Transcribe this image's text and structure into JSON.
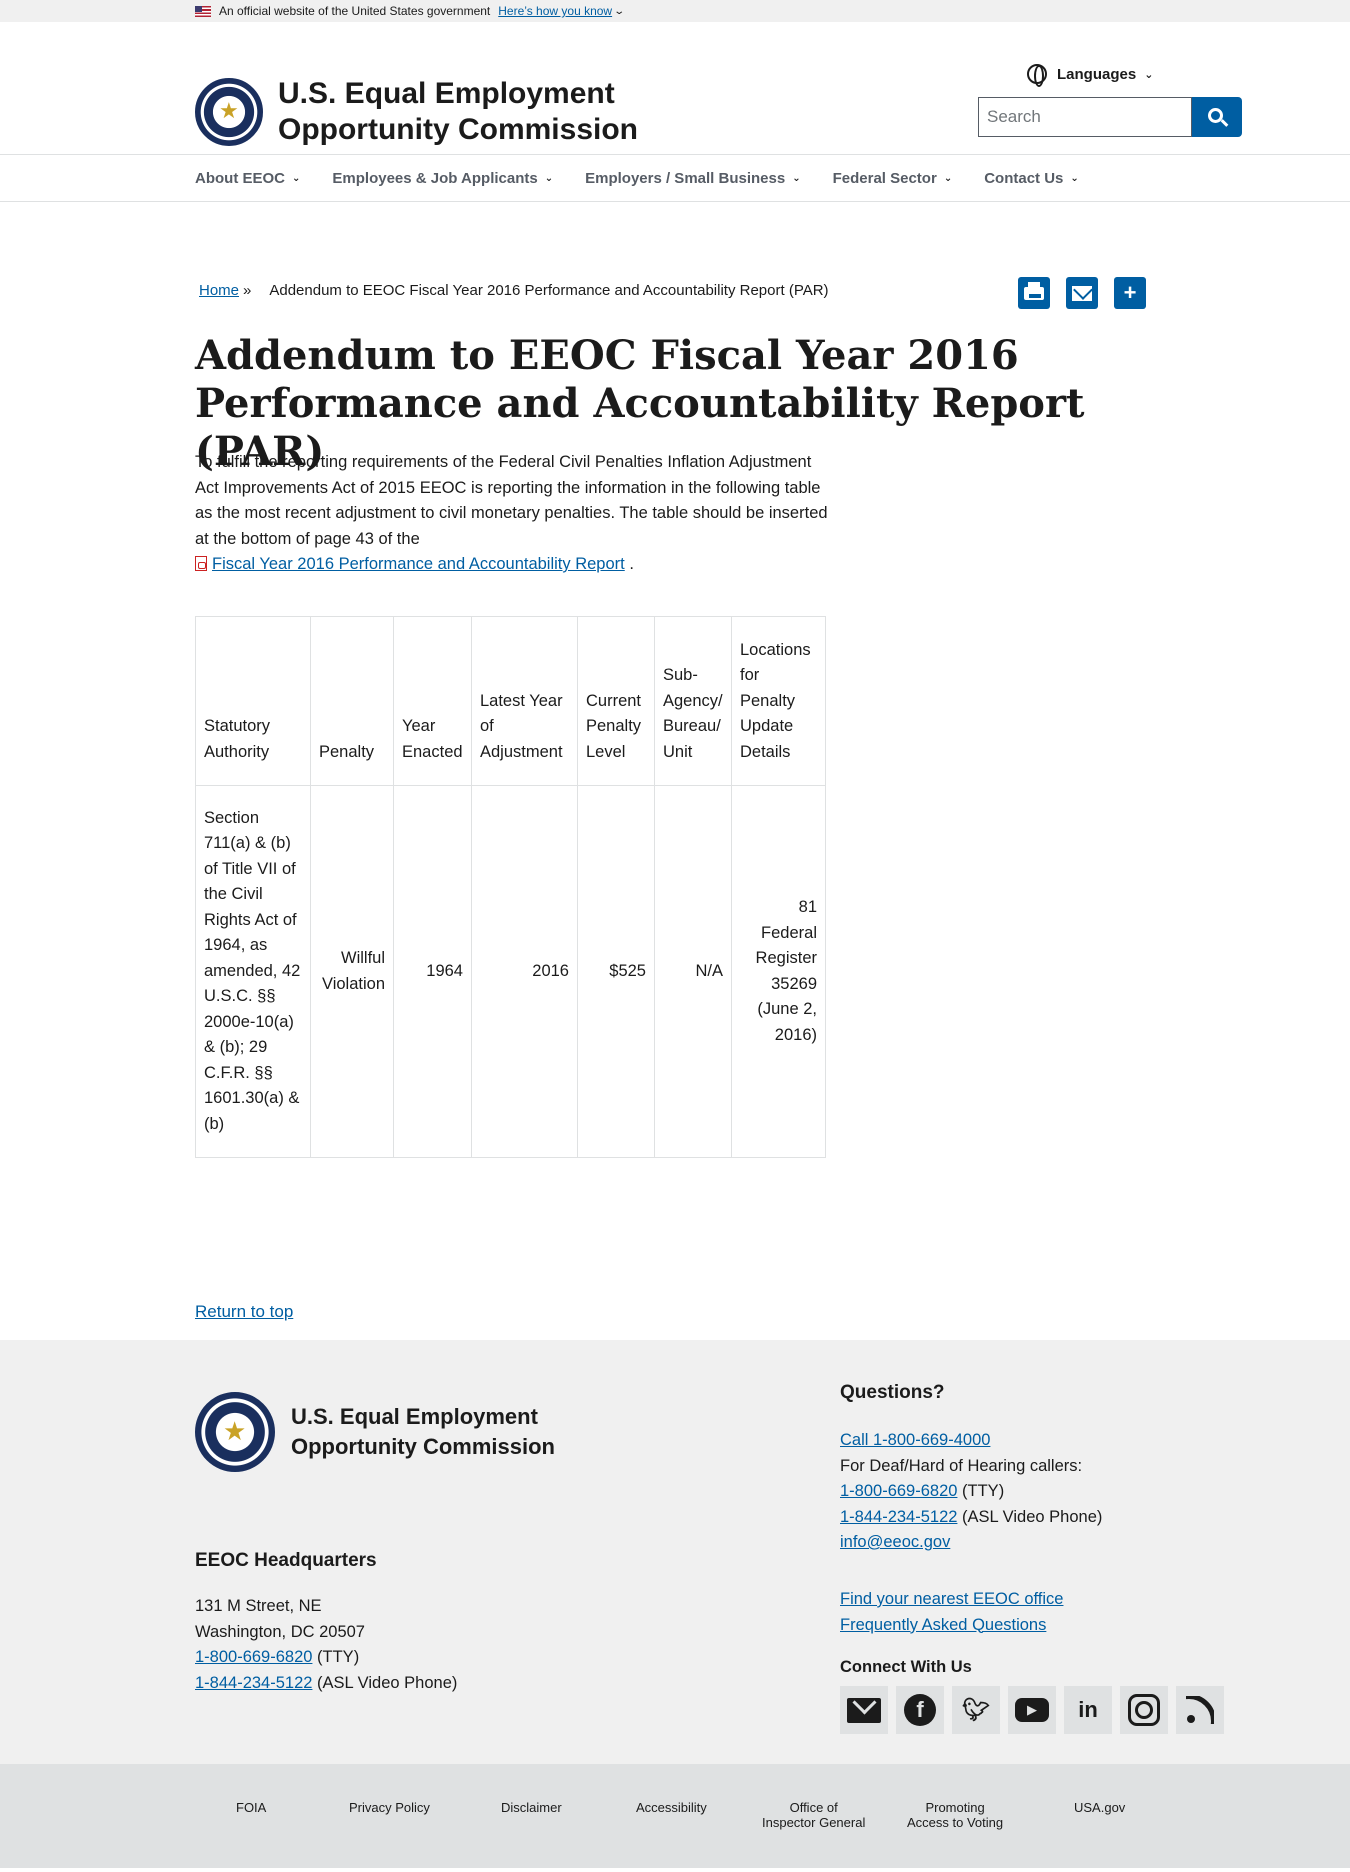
{
  "gov_banner": {
    "text": "An official website of the United States government",
    "how_link": "Here’s how you know"
  },
  "header": {
    "agency_line1": "U.S. Equal Employment",
    "agency_line2": "Opportunity Commission",
    "languages": "Languages",
    "search_placeholder": "Search"
  },
  "nav": [
    "About EEOC",
    "Employees & Job Applicants",
    "Employers / Small Business",
    "Federal Sector",
    "Contact Us"
  ],
  "breadcrumb": {
    "home": "Home",
    "separator": "»",
    "current": "Addendum to EEOC Fiscal Year 2016 Performance and Accountability Report (PAR)"
  },
  "page": {
    "title": "Addendum to EEOC Fiscal Year 2016 Performance and Accountability Report (PAR)",
    "intro": "To fulfill the reporting requirements of the Federal Civil Penalties Inflation Adjustment Act Improvements Act of 2015 EEOC is reporting the information in the following table as the most recent adjustment to civil monetary penalties.  The table should be inserted at the bottom of page 43 of the",
    "report_link": "Fiscal Year 2016 Performance and Accountability Report",
    "period": "."
  },
  "table": {
    "headers": [
      "Statutory Authority",
      "Penalty",
      "Year Enacted",
      "Latest Year of Adjustment",
      "Current Penalty Level",
      "Sub-Agency/ Bureau/ Unit",
      "Locations for Penalty Update Details"
    ],
    "row": {
      "statutory_authority": "Section 711(a) & (b) of Title VII of the Civil Rights Act of 1964, as amended, 42 U.S.C. §§ 2000e-10(a) & (b); 29 C.F.R. §§ 1601.30(a) & (b)",
      "penalty": "Willful Violation",
      "year_enacted": "1964",
      "latest_year": "2016",
      "penalty_level": "$525",
      "sub_agency": "N/A",
      "locations": "81 Federal Register 35269 (June 2, 2016)"
    }
  },
  "return_to_top": "Return to top",
  "footer": {
    "agency_line1": "U.S. Equal Employment",
    "agency_line2": "Opportunity Commission",
    "hq_heading": "EEOC Headquarters",
    "hq_address1": "131 M Street, NE",
    "hq_address2": "Washington, DC 20507",
    "hq_tty": "1-800-669-6820",
    "hq_tty_suffix": "(TTY)",
    "hq_asl": "1-844-234-5122",
    "hq_asl_suffix": "(ASL Video Phone)",
    "questions_heading": "Questions?",
    "call": "Call 1-800-669-4000",
    "deaf_text": "For Deaf/Hard of Hearing callers:",
    "tty": "1-800-669-6820",
    "tty_suffix": "(TTY)",
    "asl": "1-844-234-5122",
    "asl_suffix": "(ASL Video Phone)",
    "email": "info@eeoc.gov",
    "find_office": "Find your nearest EEOC office",
    "faq": "Frequently Asked Questions",
    "connect_heading": "Connect With Us",
    "social_icons": [
      "email-icon",
      "facebook-icon",
      "twitter-icon",
      "youtube-icon",
      "linkedin-icon",
      "instagram-icon",
      "rss-icon"
    ]
  },
  "bottom_links": {
    "foia": "FOIA",
    "privacy": "Privacy Policy",
    "disclaimer": "Disclaimer",
    "accessibility": "Accessibility",
    "oig_line1": "Office of",
    "oig_line2": "Inspector General",
    "voting_line1": "Promoting",
    "voting_line2": "Access to Voting",
    "usagov": "USA.gov"
  },
  "colors": {
    "link": "#005ea2",
    "footer_bg": "#f0f0f0",
    "bottom_bar_bg": "#dfe1e2"
  }
}
